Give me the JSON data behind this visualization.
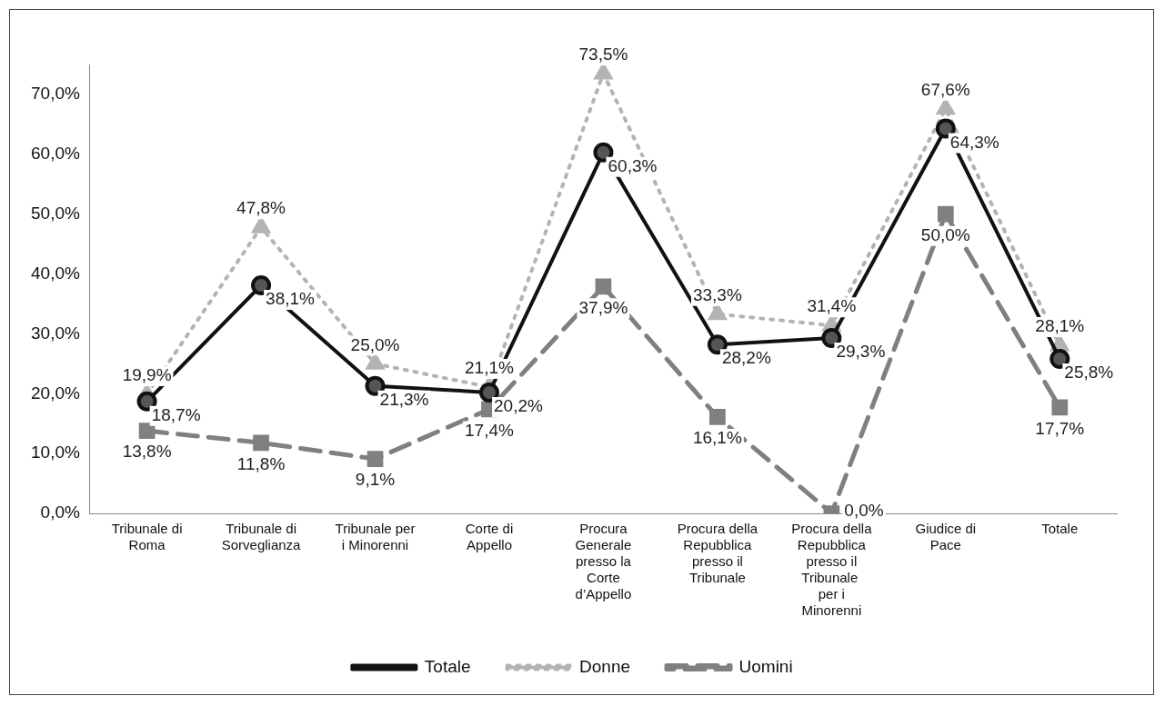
{
  "chart_data": {
    "type": "line",
    "categories": [
      "Tribunale di Roma",
      "Tribunale di Sorveglianza",
      "Tribunale per i Minorenni",
      "Corte di Appello",
      "Procura Generale presso la Corte d’Appello",
      "Procura della Repubblica presso il Tribunale",
      "Procura della Repubblica presso il Tribunale  per i Minorenni",
      "Giudice di Pace",
      "Totale"
    ],
    "series": [
      {
        "name": "Totale",
        "color": "#111111",
        "marker": "circle",
        "line_style": "solid",
        "values": [
          18.7,
          38.1,
          21.3,
          20.2,
          60.3,
          28.2,
          29.3,
          64.3,
          25.8
        ],
        "value_labels": [
          "18,7%",
          "38,1%",
          "21,3%",
          "20,2%",
          "60,3%",
          "28,2%",
          "29,3%",
          "64,3%",
          "25,8%"
        ]
      },
      {
        "name": "Donne",
        "color": "#b3b3b3",
        "marker": "triangle",
        "line_style": "dotted",
        "values": [
          19.9,
          47.8,
          25.0,
          21.1,
          73.5,
          33.3,
          31.4,
          67.6,
          28.1
        ],
        "value_labels": [
          "19,9%",
          "47,8%",
          "25,0%",
          "21,1%",
          "73,5%",
          "33,3%",
          "31,4%",
          "67,6%",
          "28,1%"
        ]
      },
      {
        "name": "Uomini",
        "color": "#808080",
        "marker": "square",
        "line_style": "dashed",
        "values": [
          13.8,
          11.8,
          9.1,
          17.4,
          37.9,
          16.1,
          0.0,
          50.0,
          17.7
        ],
        "value_labels": [
          "13,8%",
          "11,8%",
          "9,1%",
          "17,4%",
          "37,9%",
          "16,1%",
          "0,0%",
          "50,0%",
          "17,7%"
        ]
      }
    ],
    "ylim": [
      0,
      75
    ],
    "yticks": [
      {
        "value": 0,
        "label": "0,0%"
      },
      {
        "value": 10,
        "label": "10,0%"
      },
      {
        "value": 20,
        "label": "20,0%"
      },
      {
        "value": 30,
        "label": "30,0%"
      },
      {
        "value": 40,
        "label": "40,0%"
      },
      {
        "value": 50,
        "label": "50,0%"
      },
      {
        "value": 60,
        "label": "60,0%"
      },
      {
        "value": 70,
        "label": "70,0%"
      }
    ],
    "grid": false,
    "legend": "bottom"
  }
}
